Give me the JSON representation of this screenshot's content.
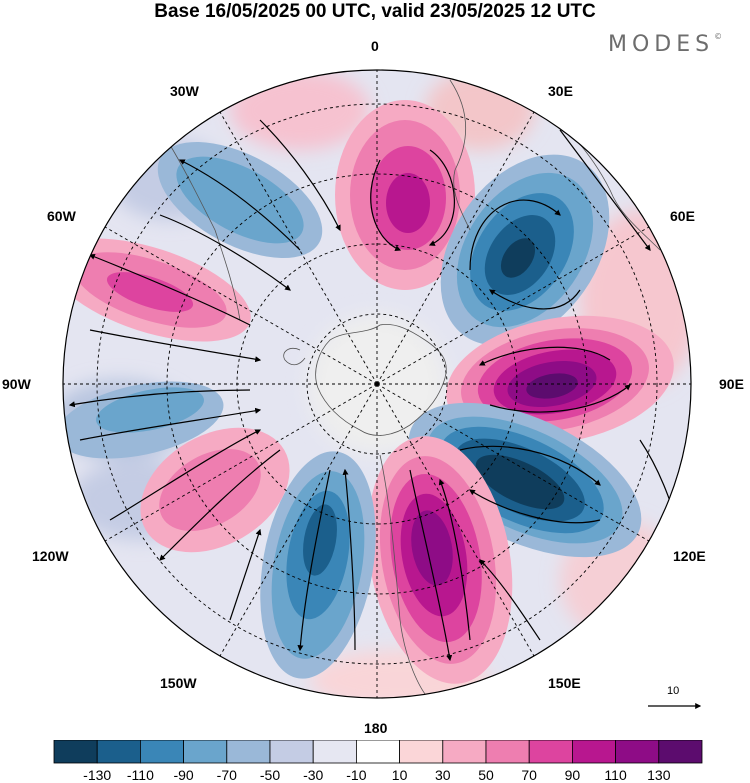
{
  "title": "Base 16/05/2025 00 UTC, valid 23/05/2025 12 UTC",
  "brand": "MODES",
  "brand_mark": "©",
  "longitude_labels": {
    "lon_0": "0",
    "lon_30e": "30E",
    "lon_60e": "60E",
    "lon_90e": "90E",
    "lon_120e": "120E",
    "lon_150e": "150E",
    "lon_180": "180",
    "lon_150w": "150W",
    "lon_120w": "120W",
    "lon_90w": "90W",
    "lon_60w": "60W",
    "lon_30w": "30W"
  },
  "reference_vector": {
    "label": "10",
    "icon": "arrow-right-icon"
  },
  "colorbar": {
    "colors": [
      "#0f3d5c",
      "#1b5f8c",
      "#3a86b7",
      "#6aa5cc",
      "#9ab8d8",
      "#c4cce4",
      "#e6e7f2",
      "#ffffff",
      "#fbd6d8",
      "#f6aac3",
      "#ee7eb0",
      "#dd449f",
      "#b8178f",
      "#8e0c86",
      "#5c0c6e"
    ],
    "ticks": [
      "-130",
      "-110",
      "-90",
      "-70",
      "-50",
      "-30",
      "-10",
      "10",
      "30",
      "50",
      "70",
      "90",
      "110",
      "130"
    ]
  }
}
